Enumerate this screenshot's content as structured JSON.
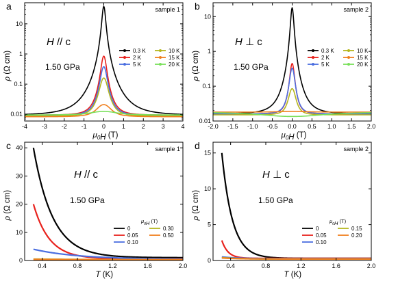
{
  "chart_data": [
    {
      "type": "line",
      "panel": "a",
      "sample": "sample 1",
      "field_orientation": "H // c",
      "pressure": "1.50 GPa",
      "xlabel": "μ0H (T)",
      "ylabel": "ρ (Ω cm)",
      "xlim": [
        -4,
        4
      ],
      "ylim": [
        0.006,
        50
      ],
      "yscale": "log",
      "xticks": [
        "-4",
        "-3",
        "-2",
        "-1",
        "0",
        "1",
        "2",
        "3",
        "4"
      ],
      "yticks": [
        "0.01",
        "0.1",
        "1",
        "10"
      ],
      "legend": {
        "columns": 2,
        "location": "right"
      },
      "series": [
        {
          "name": "0.3 K",
          "color": "#000000",
          "peak": 38,
          "base": 0.0093,
          "width": 0.09
        },
        {
          "name": "2 K",
          "color": "#e8211c",
          "peak": 0.85,
          "base": 0.0094,
          "width": 0.14
        },
        {
          "name": "5 K",
          "color": "#4a6ee0",
          "peak": 0.38,
          "base": 0.0092,
          "width": 0.17
        },
        {
          "name": "10 K",
          "color": "#b5b61e",
          "peak": 0.16,
          "base": 0.0087,
          "width": 0.22
        },
        {
          "name": "15 K",
          "color": "#f07f1e",
          "peak": 0.021,
          "base": 0.0083,
          "width": 0.45
        },
        {
          "name": "20 K",
          "color": "#78e05a",
          "peak": 0.0125,
          "base": 0.0095,
          "width": 0.9
        }
      ]
    },
    {
      "type": "line",
      "panel": "b",
      "sample": "sample 2",
      "field_orientation": "H ⊥ c",
      "pressure": "1.50 GPa",
      "xlabel": "μ0H (T)",
      "ylabel": "ρ (Ω cm)",
      "xlim": [
        -2.0,
        2.0
      ],
      "ylim": [
        0.01,
        25
      ],
      "yscale": "log",
      "xticks": [
        "-2.0",
        "-1.5",
        "-1.0",
        "-0.5",
        "0.0",
        "0.5",
        "1.0",
        "1.5",
        "2.0"
      ],
      "yticks": [
        "0.01",
        "0.1",
        "1",
        "10"
      ],
      "legend": {
        "columns": 2,
        "location": "right"
      },
      "series": [
        {
          "name": "0.3 K",
          "color": "#000000",
          "peak": 18,
          "base": 0.016,
          "width": 0.04
        },
        {
          "name": "2 K",
          "color": "#e8211c",
          "peak": 0.45,
          "base": 0.016,
          "width": 0.06
        },
        {
          "name": "5 K",
          "color": "#4a6ee0",
          "peak": 0.33,
          "base": 0.016,
          "width": 0.07
        },
        {
          "name": "10 K",
          "color": "#b5b61e",
          "peak": 0.085,
          "base": 0.015,
          "width": 0.1
        },
        {
          "name": "15 K",
          "color": "#f07f1e",
          "peak": 0.019,
          "base": 0.018,
          "width": 0.5
        },
        {
          "name": "20 K",
          "color": "#78e05a",
          "peak": 0.0135,
          "base": 0.018,
          "width": 1.2
        }
      ]
    },
    {
      "type": "line",
      "panel": "c",
      "sample": "sample 1",
      "field_orientation": "H // c",
      "pressure": "1.50 GPa",
      "xlabel": "T (K)",
      "ylabel": "ρ (Ω cm)",
      "xlim": [
        0.2,
        2.0
      ],
      "ylim": [
        0,
        42
      ],
      "yscale": "linear",
      "xticks": [
        "0.4",
        "0.8",
        "1.2",
        "1.6",
        "2.0"
      ],
      "yticks": [
        "0",
        "10",
        "20",
        "30",
        "40"
      ],
      "legend": {
        "title": "μ0H (T)",
        "columns": 2,
        "location": "lower-right"
      },
      "series": [
        {
          "name": "0",
          "color": "#000000",
          "start": [
            0.3,
            40
          ],
          "decay": 0.22,
          "floor": 1.0
        },
        {
          "name": "0.05",
          "color": "#e8211c",
          "start": [
            0.3,
            20
          ],
          "decay": 0.18,
          "floor": 0.6
        },
        {
          "name": "0.10",
          "color": "#4a6ee0",
          "start": [
            0.3,
            4
          ],
          "decay": 0.5,
          "floor": 0.4
        },
        {
          "name": "0.30",
          "color": "#b5b61e",
          "start": [
            0.3,
            0.5
          ],
          "decay": 0.6,
          "floor": 0.3
        },
        {
          "name": "0.50",
          "color": "#f07f1e",
          "start": [
            0.3,
            0.4
          ],
          "decay": 0.6,
          "floor": 0.3
        }
      ]
    },
    {
      "type": "line",
      "panel": "d",
      "sample": "sample 2",
      "field_orientation": "H ⊥ c",
      "pressure": "1.50 GPa",
      "xlabel": "T (K)",
      "ylabel": "ρ (Ω cm)",
      "xlim": [
        0.2,
        2.0
      ],
      "ylim": [
        0,
        16.5
      ],
      "yscale": "linear",
      "xticks": [
        "0.4",
        "0.8",
        "1.2",
        "1.6",
        "2.0"
      ],
      "yticks": [
        "0",
        "5",
        "10",
        "15"
      ],
      "legend": {
        "title": "μ0H (T)",
        "columns": 2,
        "location": "lower-right"
      },
      "series": [
        {
          "name": "0",
          "color": "#000000",
          "start": [
            0.3,
            15
          ],
          "decay": 0.12,
          "floor": 0.3
        },
        {
          "name": "0.05",
          "color": "#e8211c",
          "start": [
            0.3,
            2.8
          ],
          "decay": 0.07,
          "floor": 0.3
        },
        {
          "name": "0.10",
          "color": "#4a6ee0",
          "start": [
            0.3,
            0.5
          ],
          "decay": 0.2,
          "floor": 0.25
        },
        {
          "name": "0.15",
          "color": "#b5b61e",
          "start": [
            0.3,
            0.4
          ],
          "decay": 0.2,
          "floor": 0.2
        },
        {
          "name": "0.20",
          "color": "#f07f1e",
          "start": [
            0.3,
            0.35
          ],
          "decay": 0.2,
          "floor": 0.2
        }
      ]
    }
  ]
}
